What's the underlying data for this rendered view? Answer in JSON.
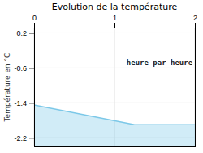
{
  "chart_data": {
    "type": "area",
    "title": "Evolution de la température",
    "y_label": "Température en °C",
    "annotation": "heure par heure",
    "x": [
      0.0,
      1.25,
      2.0
    ],
    "series": [
      {
        "values": [
          -1.45,
          -1.9,
          -1.9
        ],
        "color": "#7cc8e8"
      }
    ],
    "xlim": [
      0.0,
      2.0
    ],
    "ylim": [
      -2.4,
      0.32
    ],
    "xticks": [
      0,
      1,
      2
    ],
    "yticks": [
      0.2,
      -0.6,
      -1.4,
      -2.2
    ],
    "grid": true
  }
}
